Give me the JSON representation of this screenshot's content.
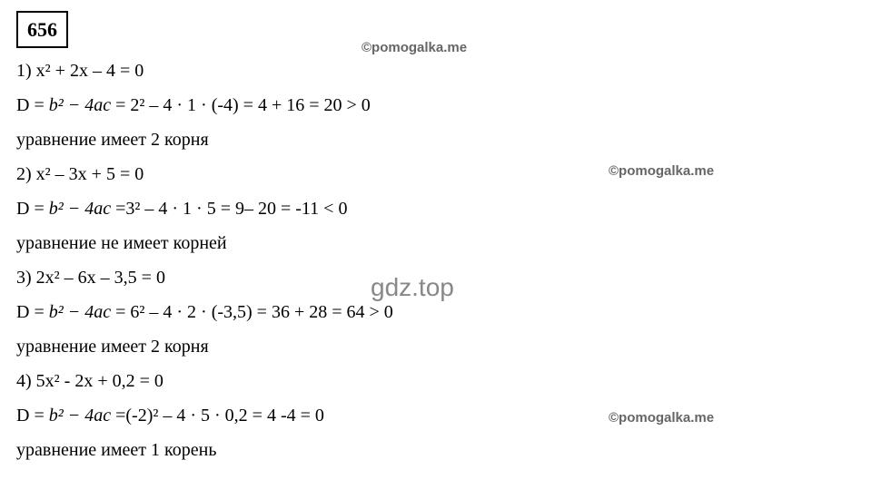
{
  "problem_number": "656",
  "items": [
    {
      "num": "1)",
      "equation": "x² + 2x – 4 = 0",
      "discriminant_prefix": "D = ",
      "discriminant_italic": "b² − 4ac",
      "discriminant_calc": " = 2² – 4 · 1 · (-4) = 4 + 16 = 20 > 0",
      "conclusion": "уравнение имеет 2 корня"
    },
    {
      "num": "2)",
      "equation": "x² – 3x + 5 = 0",
      "discriminant_prefix": "D = ",
      "discriminant_italic": "b² − 4ac",
      "discriminant_calc": " =3² – 4 · 1 · 5 = 9– 20 = -11 < 0",
      "conclusion": "уравнение не имеет корней"
    },
    {
      "num": "3)",
      "equation": "2x² – 6x – 3,5 = 0",
      "discriminant_prefix": "D = ",
      "discriminant_italic": "b² − 4ac",
      "discriminant_calc": " = 6² – 4 · 2 · (-3,5) = 36 + 28 = 64 > 0",
      "conclusion": "уравнение имеет 2 корня"
    },
    {
      "num": "4)",
      "equation": "5x² - 2x + 0,2 = 0",
      "discriminant_prefix": "D = ",
      "discriminant_italic": "b² − 4ac",
      "discriminant_calc": " =(-2)² – 4 · 5 · 0,2 = 4 -4 = 0",
      "conclusion": "уравнение имеет 1 корень"
    }
  ],
  "watermarks": {
    "wm1": "©pomogalka.me",
    "wm2": "©pomogalka.me",
    "wm3": "©pomogalka.me",
    "center": "gdz.top"
  },
  "colors": {
    "text": "#000000",
    "background": "#ffffff",
    "watermark": "#666666",
    "center_wm": "#888888"
  }
}
